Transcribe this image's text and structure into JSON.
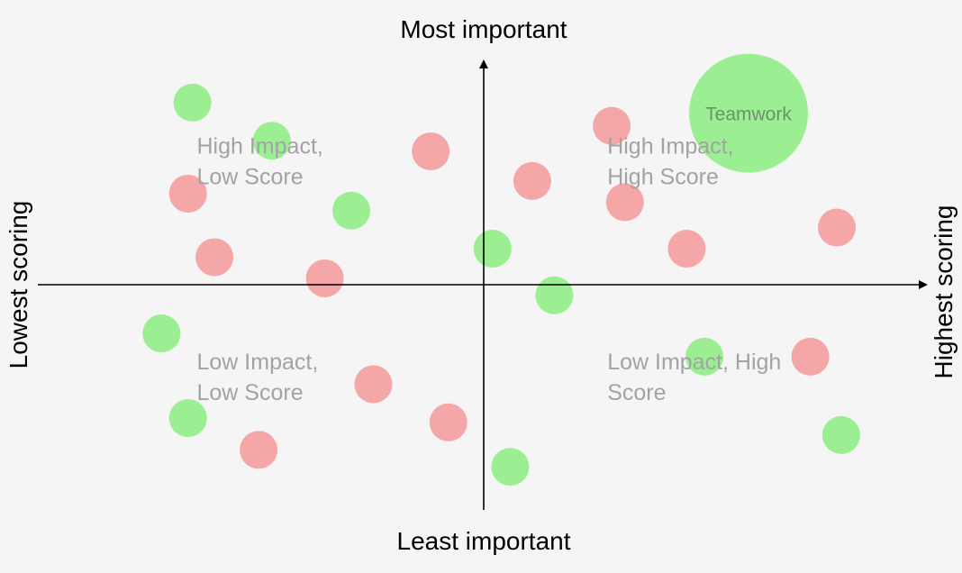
{
  "chart_data": {
    "type": "scatter",
    "title": "",
    "axes": {
      "top_label": "Most important",
      "bottom_label": "Least important",
      "left_label": "Lowest scoring",
      "right_label": "Highest scoring"
    },
    "xlim": [
      -10,
      10
    ],
    "ylim": [
      -10,
      10
    ],
    "grid": false,
    "quadrant_labels": [
      {
        "lines": [
          "High Impact,",
          "Low Score"
        ],
        "x": -6.5,
        "y": 6.2
      },
      {
        "lines": [
          "High Impact,",
          "High Score"
        ],
        "x": 2.8,
        "y": 6.2
      },
      {
        "lines": [
          "Low Impact,",
          "Low Score"
        ],
        "x": -6.5,
        "y": -4.0
      },
      {
        "lines": [
          "Low Impact, High",
          "Score"
        ],
        "x": 2.8,
        "y": -4.0
      }
    ],
    "colors": {
      "positive": "#9bef92",
      "negative": "#f5a6a6"
    },
    "points": [
      {
        "x": 6.0,
        "y": 8.1,
        "size": 3,
        "category": "positive",
        "label": "Teamwork"
      },
      {
        "x": -6.6,
        "y": 8.6,
        "size": 1,
        "category": "positive"
      },
      {
        "x": -4.8,
        "y": 6.8,
        "size": 1,
        "category": "positive"
      },
      {
        "x": -3.0,
        "y": 3.5,
        "size": 1,
        "category": "positive"
      },
      {
        "x": 0.2,
        "y": 1.7,
        "size": 1,
        "category": "positive"
      },
      {
        "x": 1.6,
        "y": -0.5,
        "size": 1,
        "category": "positive"
      },
      {
        "x": -7.3,
        "y": -2.3,
        "size": 1,
        "category": "positive"
      },
      {
        "x": 5.0,
        "y": -3.4,
        "size": 1,
        "category": "positive"
      },
      {
        "x": 8.1,
        "y": -7.1,
        "size": 1,
        "category": "positive"
      },
      {
        "x": -6.7,
        "y": -6.3,
        "size": 1,
        "category": "positive"
      },
      {
        "x": 0.6,
        "y": -8.6,
        "size": 1,
        "category": "positive"
      },
      {
        "x": 2.9,
        "y": 7.5,
        "size": 1,
        "category": "negative"
      },
      {
        "x": -1.2,
        "y": 6.3,
        "size": 1,
        "category": "negative"
      },
      {
        "x": 1.1,
        "y": 4.9,
        "size": 1,
        "category": "negative"
      },
      {
        "x": -6.7,
        "y": 4.3,
        "size": 1,
        "category": "negative"
      },
      {
        "x": 3.2,
        "y": 3.9,
        "size": 1,
        "category": "negative"
      },
      {
        "x": 8.0,
        "y": 2.7,
        "size": 1,
        "category": "negative"
      },
      {
        "x": 4.6,
        "y": 1.7,
        "size": 1,
        "category": "negative"
      },
      {
        "x": -6.1,
        "y": 1.3,
        "size": 1,
        "category": "negative"
      },
      {
        "x": -3.6,
        "y": 0.3,
        "size": 1,
        "category": "negative"
      },
      {
        "x": 7.4,
        "y": -3.4,
        "size": 1,
        "category": "negative"
      },
      {
        "x": -2.5,
        "y": -4.7,
        "size": 1,
        "category": "negative"
      },
      {
        "x": -0.8,
        "y": -6.5,
        "size": 1,
        "category": "negative"
      },
      {
        "x": -5.1,
        "y": -7.8,
        "size": 1,
        "category": "negative"
      }
    ]
  }
}
